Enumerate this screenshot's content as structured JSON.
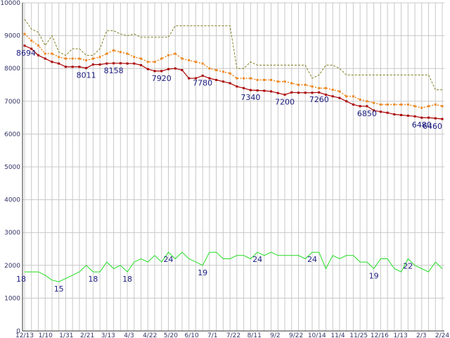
{
  "chart_data": {
    "type": "line",
    "title": "",
    "xlabel": "",
    "ylabel": "",
    "ylim": [
      0,
      10000
    ],
    "yticks": [
      0,
      1000,
      2000,
      3000,
      4000,
      5000,
      6000,
      7000,
      8000,
      9000,
      10000
    ],
    "grid": true,
    "xtick_labels": [
      "12/13",
      "1/10",
      "1/31",
      "2/21",
      "3/13",
      "4/3",
      "4/22",
      "5/20",
      "6/10",
      "7/1",
      "7/22",
      "8/11",
      "9/2",
      "9/22",
      "10/14",
      "11/4",
      "11/25",
      "12/16",
      "1/13",
      "2/3",
      "2/24"
    ],
    "x_count": 62,
    "colors": {
      "upper_dashed": "#808020",
      "orange_dotted": "#ee8820",
      "red_line": "#aa0000",
      "green_line": "#22dd22",
      "grid": "#c8c8c8",
      "axis": "#333333",
      "label": "#1a1a80"
    },
    "series": [
      {
        "key": "upper_dashed",
        "style": "dashed",
        "values": [
          9500,
          9200,
          9100,
          8700,
          9000,
          8500,
          8400,
          8600,
          8600,
          8400,
          8400,
          8600,
          9150,
          9150,
          9050,
          9000,
          9050,
          8950,
          8950,
          8950,
          8950,
          8950,
          9300,
          9300,
          9300,
          9300,
          9300,
          9300,
          9300,
          9300,
          9300,
          8000,
          8000,
          8200,
          8100,
          8100,
          8100,
          8100,
          8100,
          8100,
          8100,
          8100,
          7700,
          7800,
          8100,
          8100,
          8000,
          7800,
          7800,
          7800,
          7800,
          7800,
          7800,
          7800,
          7800,
          7800,
          7800,
          7800,
          7800,
          7800,
          7350,
          7350
        ]
      },
      {
        "key": "orange_dotted",
        "style": "dotted",
        "values": [
          9050,
          8850,
          8700,
          8450,
          8450,
          8350,
          8300,
          8300,
          8300,
          8250,
          8300,
          8350,
          8450,
          8550,
          8500,
          8450,
          8350,
          8300,
          8200,
          8200,
          8300,
          8400,
          8450,
          8300,
          8250,
          8200,
          8150,
          8000,
          7950,
          7900,
          7850,
          7700,
          7700,
          7700,
          7650,
          7650,
          7650,
          7600,
          7600,
          7550,
          7500,
          7500,
          7450,
          7400,
          7400,
          7350,
          7300,
          7150,
          7150,
          7050,
          7000,
          6950,
          6900,
          6900,
          6900,
          6900,
          6900,
          6850,
          6800,
          6850,
          6900,
          6850
        ]
      },
      {
        "key": "red_line",
        "style": "solid-markers",
        "values": [
          8694,
          8600,
          8400,
          8300,
          8200,
          8150,
          8050,
          8050,
          8050,
          8011,
          8120,
          8120,
          8150,
          8158,
          8158,
          8150,
          8150,
          8100,
          7980,
          7920,
          7920,
          7980,
          8000,
          7950,
          7700,
          7700,
          7780,
          7700,
          7650,
          7600,
          7550,
          7450,
          7400,
          7340,
          7330,
          7320,
          7300,
          7250,
          7200,
          7270,
          7260,
          7260,
          7260,
          7270,
          7200,
          7150,
          7100,
          7000,
          6900,
          6850,
          6850,
          6720,
          6680,
          6650,
          6600,
          6580,
          6560,
          6540,
          6500,
          6500,
          6480,
          6460
        ]
      },
      {
        "key": "green_line",
        "style": "solid",
        "values": [
          1800,
          1800,
          1800,
          1700,
          1550,
          1500,
          1600,
          1700,
          1800,
          2000,
          1800,
          1800,
          2100,
          1900,
          2000,
          1800,
          2100,
          2200,
          2100,
          2300,
          2100,
          2400,
          2200,
          2400,
          2200,
          2100,
          2000,
          2400,
          2400,
          2200,
          2200,
          2300,
          2300,
          2200,
          2400,
          2300,
          2400,
          2300,
          2300,
          2300,
          2300,
          2200,
          2400,
          2400,
          1900,
          2300,
          2200,
          2300,
          2300,
          2100,
          2100,
          1900,
          2200,
          2200,
          1900,
          1800,
          2200,
          2000,
          1900,
          1800,
          2100,
          1900
        ]
      }
    ],
    "annotations": [
      {
        "series": "red_line",
        "index": 0,
        "text": "8694"
      },
      {
        "series": "red_line",
        "index": 9,
        "text": "8011"
      },
      {
        "series": "red_line",
        "index": 13,
        "text": "8158"
      },
      {
        "series": "red_line",
        "index": 20,
        "text": "7920"
      },
      {
        "series": "red_line",
        "index": 26,
        "text": "7780"
      },
      {
        "series": "red_line",
        "index": 33,
        "text": "7340"
      },
      {
        "series": "red_line",
        "index": 38,
        "text": "7200"
      },
      {
        "series": "red_line",
        "index": 43,
        "text": "7260"
      },
      {
        "series": "red_line",
        "index": 50,
        "text": "6850"
      },
      {
        "series": "red_line",
        "index": 58,
        "text": "6480"
      },
      {
        "series": "red_line",
        "index": 61,
        "text": "6460"
      },
      {
        "series": "green_line",
        "index": 0,
        "text": "18"
      },
      {
        "series": "green_line",
        "index": 5,
        "text": "15"
      },
      {
        "series": "green_line",
        "index": 10,
        "text": "18"
      },
      {
        "series": "green_line",
        "index": 15,
        "text": "18"
      },
      {
        "series": "green_line",
        "index": 21,
        "text": "24"
      },
      {
        "series": "green_line",
        "index": 26,
        "text": "19"
      },
      {
        "series": "green_line",
        "index": 34,
        "text": "24"
      },
      {
        "series": "green_line",
        "index": 42,
        "text": "24"
      },
      {
        "series": "green_line",
        "index": 51,
        "text": "19"
      },
      {
        "series": "green_line",
        "index": 56,
        "text": "22"
      }
    ]
  }
}
